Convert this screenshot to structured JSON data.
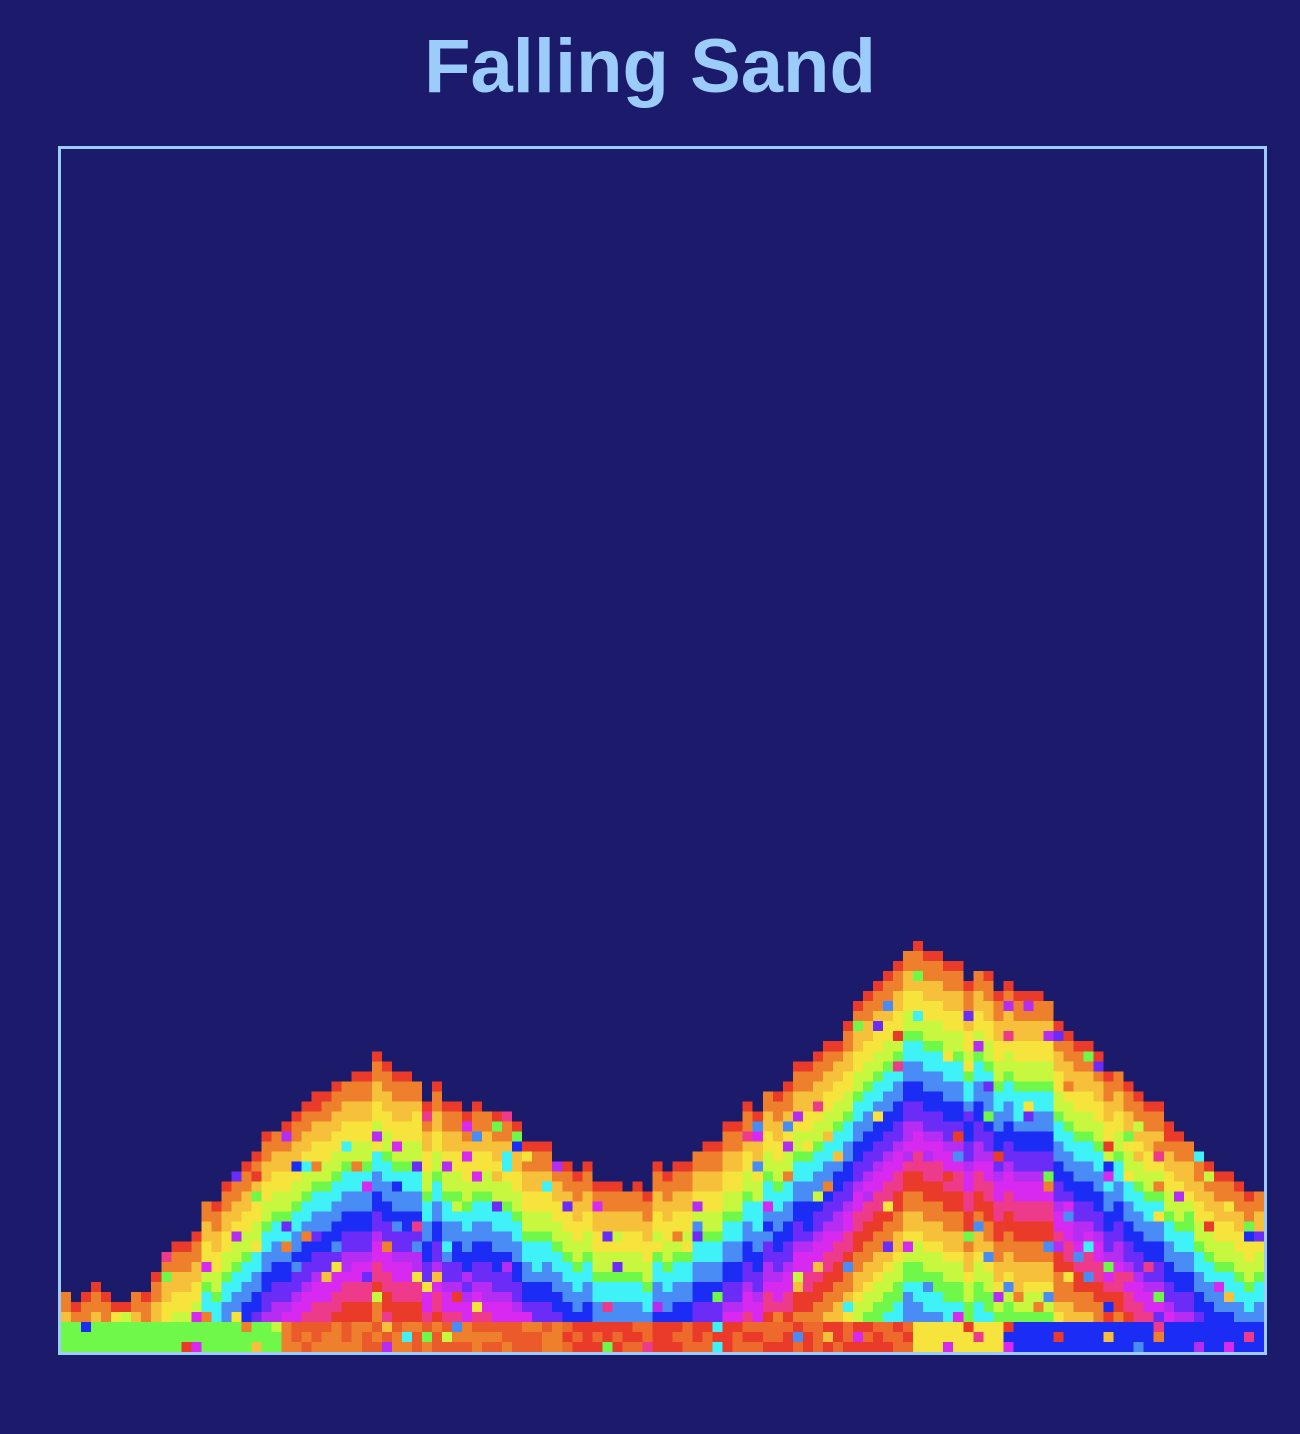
{
  "page": {
    "title": "Falling Sand",
    "colors": {
      "background": "#1b1a6b",
      "title": "#9ccdfa",
      "border": "#9ccdfa"
    }
  },
  "simulation": {
    "grid_size": 120,
    "palette": [
      "#3ff2f8",
      "#4a8cf6",
      "#1b2cf5",
      "#6a2cf6",
      "#d829f0",
      "#ee3a8a",
      "#ea3a2a",
      "#ee7f2c",
      "#f6e33b",
      "#c8f740",
      "#6ff74a"
    ]
  }
}
